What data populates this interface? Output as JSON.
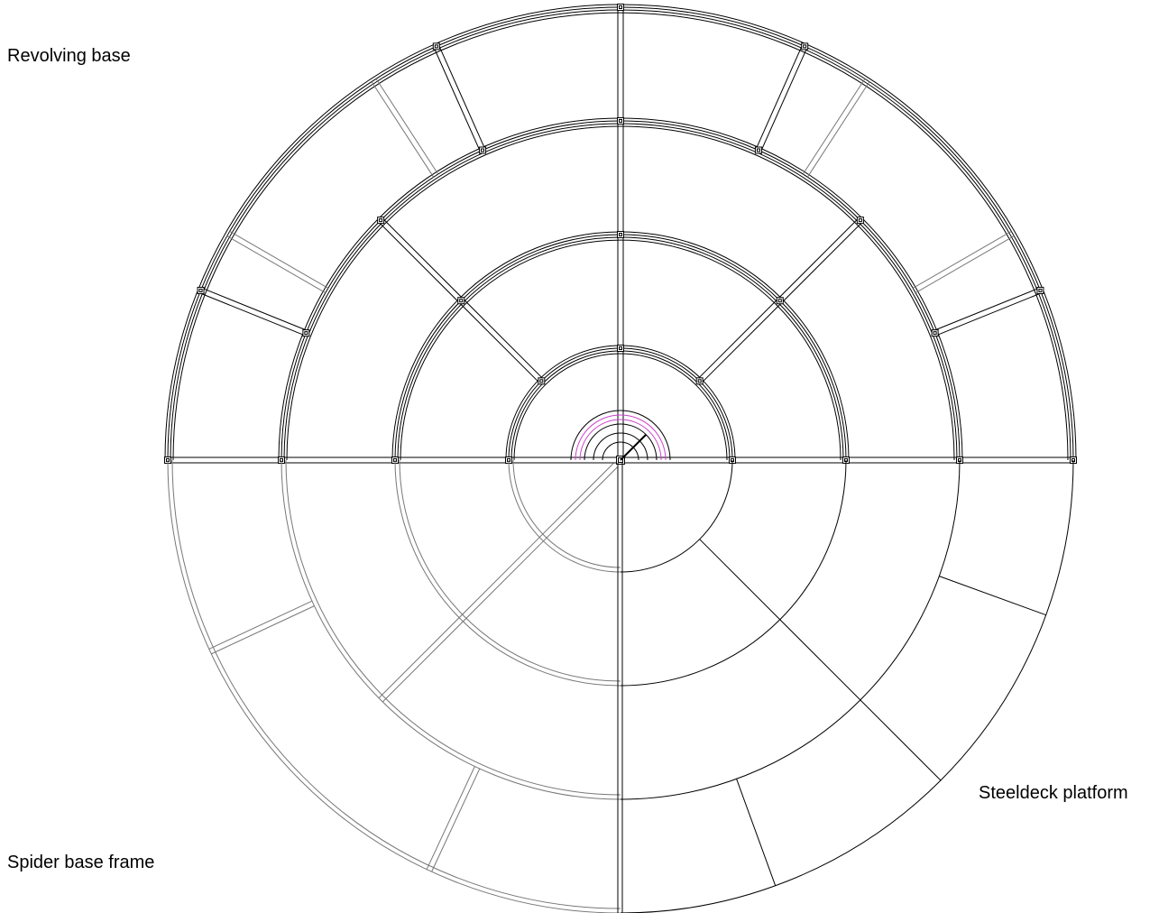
{
  "labels": {
    "revolving_base": "Revolving base",
    "spider_base_frame": "Spider base frame",
    "steeldeck_platform": "Steeldeck platform"
  },
  "colors": {
    "line": "#000000",
    "light_line": "#777777",
    "accent_magenta": "#cc44cc"
  }
}
